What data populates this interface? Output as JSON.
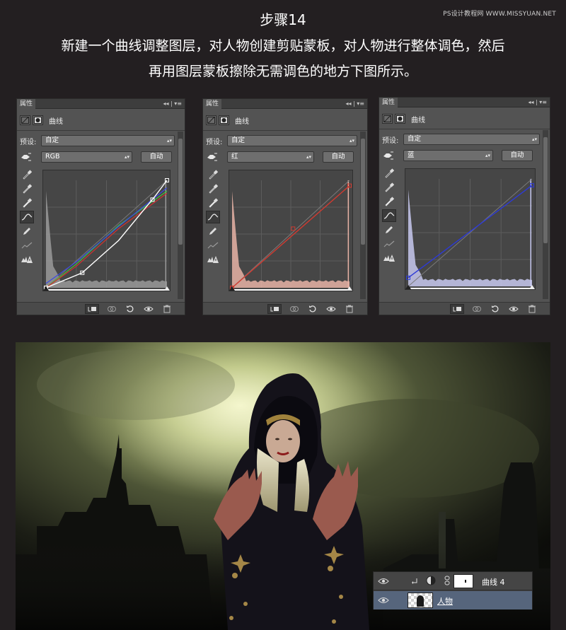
{
  "watermark": "PS设计教程网 WWW.MISSYUAN.NET",
  "step_title": "步骤14",
  "description": {
    "line1": "新建一个曲线调整图层，对人物创建剪贴蒙板，对人物进行整体调色，然后",
    "line2": "再用图层蒙板擦除无需调色的地方下图所示。"
  },
  "panels": [
    {
      "tab_label": "属性",
      "panel_controls": "◂◂ | ▾≡",
      "title": "曲线",
      "preset_label": "预设:",
      "preset_value": "自定",
      "channel_value": "RGB",
      "auto_label": "自动",
      "channel_color": "#ffffff",
      "hist_color": "#9a9a9a"
    },
    {
      "tab_label": "属性",
      "panel_controls": "◂◂ | ▾≡",
      "title": "曲线",
      "preset_label": "预设:",
      "preset_value": "自定",
      "channel_value": "红",
      "auto_label": "自动",
      "channel_color": "#d23a30",
      "hist_color": "#e8b3a6"
    },
    {
      "tab_label": "属性",
      "panel_controls": "◂◂ | ▾≡",
      "title": "曲线",
      "preset_label": "预设:",
      "preset_value": "自定",
      "channel_value": "蓝",
      "auto_label": "自动",
      "channel_color": "#2d3ad6",
      "hist_color": "#c8c9f0"
    }
  ],
  "layers": {
    "top_layer_name": "曲线 4",
    "bottom_layer_name": "人物"
  },
  "colors": {
    "background": "#231f21",
    "panel": "#535353",
    "selected_layer": "#56657c"
  }
}
